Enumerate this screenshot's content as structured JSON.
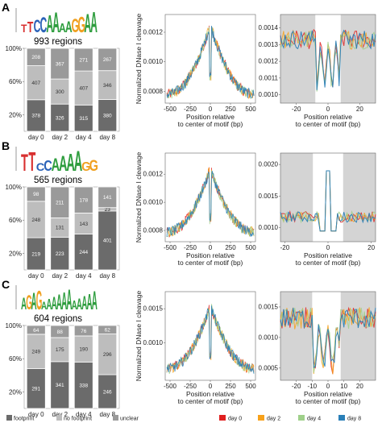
{
  "chart_data": {
    "type": "multi-panel",
    "legend_bars": [
      "footprint",
      "no footprint",
      "unclear"
    ],
    "legend_lines": [
      {
        "name": "day 0",
        "color": "#e02020"
      },
      {
        "name": "day 2",
        "color": "#f7a11a"
      },
      {
        "name": "day 4",
        "color": "#9fd08a"
      },
      {
        "name": "day 8",
        "color": "#2a7fb8"
      }
    ],
    "bar_colors": {
      "footprint": "#6b6b6b",
      "no_footprint": "#bdbdbd",
      "unclear": "#9a9a9a"
    },
    "bar_y_ticks": [
      "20%",
      "60%",
      "100%"
    ],
    "days": [
      "day 0",
      "day 2",
      "day 4",
      "day 8"
    ],
    "profile_xlabel": "Position relative\nto center of motif (bp)",
    "profile_ylabel": "Normalized DNase I cleavage",
    "panels": [
      {
        "letter": "A",
        "motif": "TTCCAAAAGGAA",
        "regions_label": "993 regions",
        "stacks": [
          {
            "footprint": 378,
            "no_footprint": 407,
            "unclear": 208
          },
          {
            "footprint": 326,
            "no_footprint": 300,
            "unclear": 367
          },
          {
            "footprint": 315,
            "no_footprint": 407,
            "unclear": 271
          },
          {
            "footprint": 380,
            "no_footprint": 346,
            "unclear": 267
          }
        ],
        "wide": {
          "xticks": [
            -500,
            -250,
            0,
            250,
            500
          ],
          "yticks": [
            0.0008,
            0.001,
            0.0012
          ],
          "ylim": [
            0.00072,
            0.00132
          ],
          "base": 0.00078,
          "peak": 0.00125
        },
        "zoom": {
          "xticks": [
            -20,
            0,
            20
          ],
          "yticks": [
            0.001,
            0.0011,
            0.0012,
            0.0013,
            0.0014
          ],
          "ylim": [
            0.00095,
            0.00148
          ],
          "shade": [
            -8,
            8
          ],
          "xlim": [
            -30,
            30
          ]
        }
      },
      {
        "letter": "B",
        "motif": "TTCCAAAAGG",
        "regions_label": "565 regions",
        "stacks": [
          {
            "footprint": 219,
            "no_footprint": 248,
            "unclear": 98
          },
          {
            "footprint": 223,
            "no_footprint": 131,
            "unclear": 211
          },
          {
            "footprint": 244,
            "no_footprint": 143,
            "unclear": 178
          },
          {
            "footprint": 401,
            "no_footprint": 23,
            "unclear": 141
          }
        ],
        "wide": {
          "xticks": [
            -500,
            -250,
            0,
            250,
            500
          ],
          "yticks": [
            0.0008,
            0.001,
            0.0012
          ],
          "ylim": [
            0.00072,
            0.00135
          ],
          "base": 0.00079,
          "peak": 0.00124
        },
        "zoom": {
          "xticks": [
            -20,
            0,
            20
          ],
          "yticks": [
            0.001,
            0.0015,
            0.002
          ],
          "ylim": [
            0.00078,
            0.00218
          ],
          "shade": [
            -7,
            7
          ],
          "xlim": [
            -22,
            22
          ]
        }
      },
      {
        "letter": "C",
        "motif": "AGAGAAAAAAAAAAA",
        "regions_label": "604 regions",
        "stacks": [
          {
            "footprint": 291,
            "no_footprint": 249,
            "unclear": 64
          },
          {
            "footprint": 341,
            "no_footprint": 175,
            "unclear": 88
          },
          {
            "footprint": 338,
            "no_footprint": 190,
            "unclear": 76
          },
          {
            "footprint": 246,
            "no_footprint": 296,
            "unclear": 62
          }
        ],
        "wide": {
          "xticks": [
            -500,
            -250,
            0,
            250,
            500
          ],
          "yticks": [
            0.001,
            0.0015
          ],
          "ylim": [
            0.00045,
            0.00175
          ],
          "base": 0.00062,
          "peak": 0.00155
        },
        "zoom": {
          "xticks": [
            -20,
            -10,
            0,
            10,
            20
          ],
          "yticks": [
            0.0005,
            0.001,
            0.0015
          ],
          "ylim": [
            0.0003,
            0.00175
          ],
          "shade": [
            -10,
            8
          ],
          "xlim": [
            -30,
            30
          ]
        }
      }
    ]
  }
}
